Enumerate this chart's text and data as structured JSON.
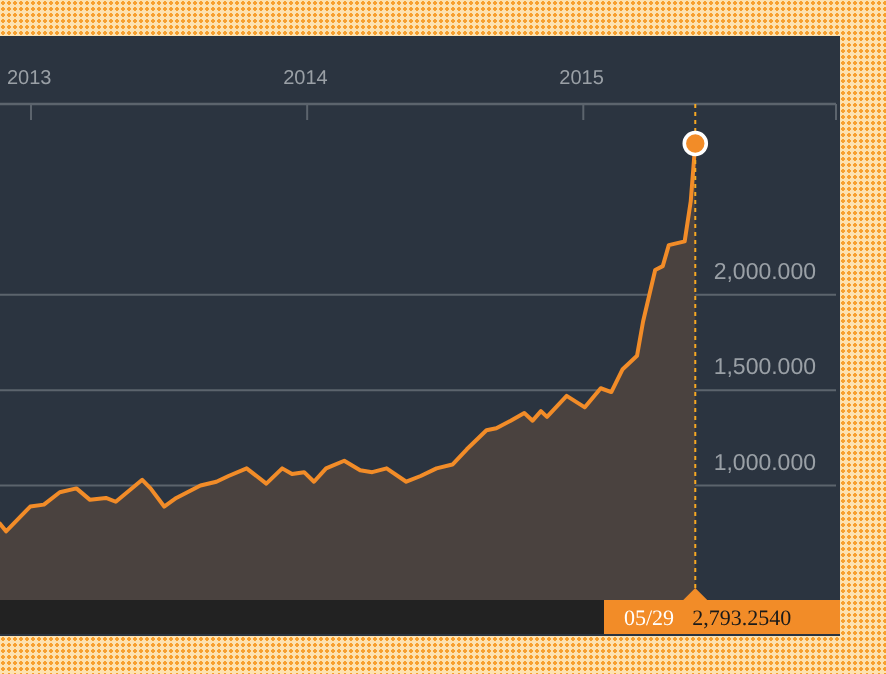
{
  "chart_data": {
    "type": "area",
    "xlim": [
      "2012-11-21",
      "2015-12-01"
    ],
    "ylim": [
      400,
      3000
    ],
    "xticks": [
      {
        "value": "2013-01-01",
        "label": "2013"
      },
      {
        "value": "2014-01-01",
        "label": "2014"
      },
      {
        "value": "2015-01-01",
        "label": "2015"
      }
    ],
    "yticks": [
      {
        "value": 1000,
        "label": "1,000.000"
      },
      {
        "value": 1500,
        "label": "1,500.000"
      },
      {
        "value": 2000,
        "label": "2,000.000"
      }
    ],
    "grid": "y",
    "series": [
      {
        "color": "#f28c28",
        "x": [
          "2012-11-21",
          "2012-11-29",
          "2012-12-31",
          "2013-01-18",
          "2013-02-08",
          "2013-03-02",
          "2013-03-20",
          "2013-04-10",
          "2013-04-23",
          "2013-05-28",
          "2013-06-08",
          "2013-06-26",
          "2013-07-12",
          "2013-08-13",
          "2013-09-03",
          "2013-09-19",
          "2013-10-13",
          "2013-11-08",
          "2013-11-29",
          "2013-12-12",
          "2013-12-28",
          "2014-01-10",
          "2014-01-26",
          "2014-02-19",
          "2014-03-12",
          "2014-03-28",
          "2014-04-16",
          "2014-05-12",
          "2014-05-31",
          "2014-06-21",
          "2014-07-12",
          "2014-07-31",
          "2014-08-26",
          "2014-09-08",
          "2014-09-27",
          "2014-10-15",
          "2014-10-26",
          "2014-11-06",
          "2014-11-14",
          "2014-12-10",
          "2015-01-03",
          "2015-01-24",
          "2015-02-07",
          "2015-02-22",
          "2015-03-13",
          "2015-03-21",
          "2015-04-06",
          "2015-04-16",
          "2015-04-24",
          "2015-05-15",
          "2015-05-23",
          "2015-05-29"
        ],
        "values": [
          800,
          760,
          890,
          900,
          965,
          985,
          925,
          935,
          915,
          1030,
          985,
          890,
          935,
          1000,
          1020,
          1050,
          1090,
          1010,
          1090,
          1060,
          1070,
          1020,
          1090,
          1130,
          1080,
          1070,
          1090,
          1020,
          1050,
          1090,
          1110,
          1190,
          1290,
          1300,
          1340,
          1380,
          1340,
          1390,
          1360,
          1470,
          1410,
          1510,
          1490,
          1610,
          1680,
          1860,
          2130,
          2150,
          2260,
          2280,
          2490,
          2793.254
        ]
      },
      {
        "type": "scatter",
        "color": "#f28c28",
        "x": [
          "2015-05-29"
        ],
        "values": [
          2793.254
        ]
      }
    ],
    "ref_lines": [
      {
        "axis": "x",
        "value": "2015-05-29",
        "color": "#f7a823",
        "line_style": "dotted"
      }
    ],
    "annotations": [
      "05/29",
      "2,793.2540"
    ]
  }
}
